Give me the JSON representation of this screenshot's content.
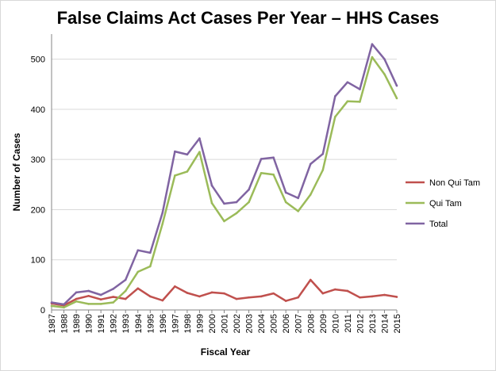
{
  "chart_data": {
    "type": "line",
    "title": "False Claims Act Cases Per Year – HHS Cases",
    "xlabel": "Fiscal Year",
    "ylabel": "Number of Cases",
    "ylim": [
      0,
      550
    ],
    "yticks": [
      0,
      100,
      200,
      300,
      400,
      500
    ],
    "grid": true,
    "legend_position": "right",
    "x": [
      "1987",
      "1988",
      "1989",
      "1990",
      "1991",
      "1992",
      "1993",
      "1994",
      "1995",
      "1996",
      "1997",
      "1998",
      "1999",
      "2000",
      "2001",
      "2002",
      "2003",
      "2004",
      "2005",
      "2006",
      "2007",
      "2008",
      "2009",
      "2010",
      "2011",
      "2012",
      "2013",
      "2014",
      "2015"
    ],
    "series": [
      {
        "name": "Non Qui Tam",
        "color": "#c0504d",
        "values": [
          13,
          9,
          22,
          28,
          21,
          26,
          22,
          43,
          27,
          19,
          47,
          34,
          27,
          35,
          33,
          22,
          25,
          27,
          33,
          18,
          25,
          60,
          33,
          41,
          38,
          25,
          27,
          30,
          26
        ]
      },
      {
        "name": "Qui Tam",
        "color": "#9bbb59",
        "values": [
          8,
          5,
          17,
          12,
          12,
          15,
          38,
          76,
          87,
          172,
          268,
          276,
          315,
          213,
          177,
          193,
          215,
          273,
          270,
          215,
          197,
          230,
          279,
          385,
          416,
          415,
          504,
          470,
          422
        ]
      },
      {
        "name": "Total",
        "color": "#8064a2",
        "values": [
          15,
          11,
          35,
          38,
          30,
          42,
          60,
          119,
          114,
          194,
          316,
          310,
          342,
          248,
          212,
          215,
          240,
          301,
          304,
          234,
          223,
          291,
          311,
          426,
          454,
          440,
          530,
          500,
          447
        ]
      }
    ]
  }
}
